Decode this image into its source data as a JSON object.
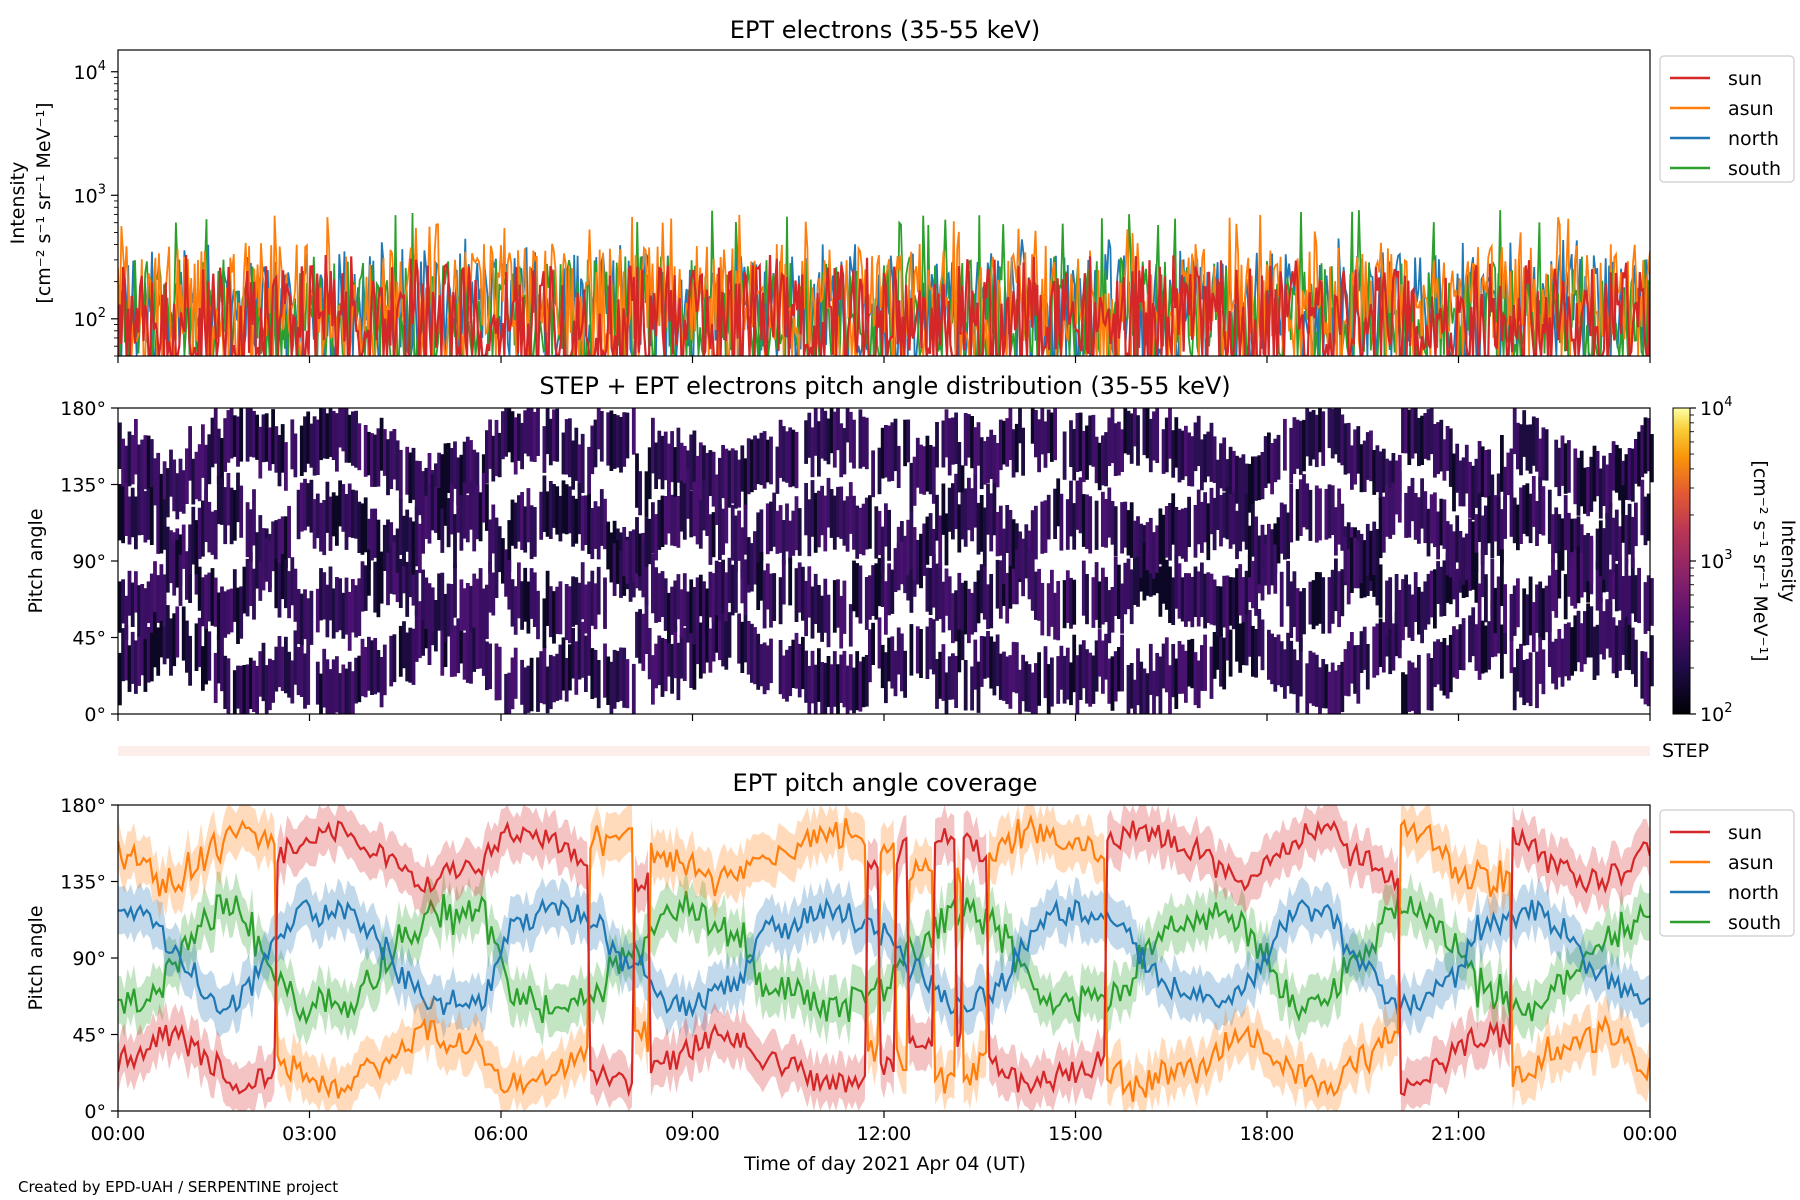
{
  "figure": {
    "credit": "Created by EPD-UAH / SERPENTINE project",
    "xlabel": "Time of day 2021 Apr 04 (UT)",
    "xticks": [
      "00:00",
      "03:00",
      "06:00",
      "09:00",
      "12:00",
      "15:00",
      "18:00",
      "21:00",
      "00:00"
    ],
    "step_label": "STEP"
  },
  "colors": {
    "sun": "#d62728",
    "asun": "#ff7f0e",
    "north": "#1f77b4",
    "south": "#2ca02c"
  },
  "chart_data": [
    {
      "type": "line",
      "title": "EPT electrons (35-55 keV)",
      "ylabel_line1": "Intensity",
      "ylabel_line2": "[cm⁻² s⁻¹ sr⁻¹ MeV⁻¹]",
      "yscale": "log",
      "ylim": [
        50,
        15000
      ],
      "yticks": [
        {
          "value": 100,
          "base": "10",
          "exp": "2"
        },
        {
          "value": 1000,
          "base": "10",
          "exp": "3"
        },
        {
          "value": 10000,
          "base": "10",
          "exp": "4"
        }
      ],
      "xlim_hours": [
        0,
        24
      ],
      "legend_position": "right, outside top",
      "series": [
        {
          "name": "sun",
          "color": "#d62728",
          "approx_median": 120,
          "approx_max": 330
        },
        {
          "name": "asun",
          "color": "#ff7f0e",
          "approx_median": 180,
          "approx_max": 700
        },
        {
          "name": "north",
          "color": "#1f77b4",
          "approx_median": 150,
          "approx_max": 450
        },
        {
          "name": "south",
          "color": "#2ca02c",
          "approx_median": 140,
          "approx_max": 770
        }
      ]
    },
    {
      "type": "heatmap",
      "title": "STEP + EPT electrons pitch angle distribution (35-55 keV)",
      "ylabel": "Pitch angle",
      "yticks": [
        "0°",
        "45°",
        "90°",
        "135°",
        "180°"
      ],
      "ylim": [
        0,
        180
      ],
      "xlim_hours": [
        0,
        24
      ],
      "colorbar": {
        "label_line1": "Intensity",
        "label_line2": "[cm⁻² s⁻¹ sr⁻¹ MeV⁻¹]",
        "scale": "log",
        "range": [
          100,
          10000
        ],
        "ticks": [
          {
            "value": 100,
            "base": "10",
            "exp": "2"
          },
          {
            "value": 1000,
            "base": "10",
            "exp": "3"
          },
          {
            "value": 10000,
            "base": "10",
            "exp": "4"
          }
        ],
        "colormap": "inferno"
      }
    },
    {
      "type": "line",
      "title": "EPT pitch angle coverage",
      "ylabel": "Pitch angle",
      "yticks": [
        "0°",
        "45°",
        "90°",
        "135°",
        "180°"
      ],
      "ylim": [
        0,
        180
      ],
      "xlim_hours": [
        0,
        24
      ],
      "legend_position": "right, outside top",
      "series": [
        {
          "name": "sun",
          "color": "#d62728",
          "approx_mean_deg": 30
        },
        {
          "name": "asun",
          "color": "#ff7f0e",
          "approx_mean_deg": 155
        },
        {
          "name": "north",
          "color": "#1f77b4",
          "approx_mean_deg": 90
        },
        {
          "name": "south",
          "color": "#2ca02c",
          "approx_mean_deg": 95
        }
      ]
    }
  ]
}
